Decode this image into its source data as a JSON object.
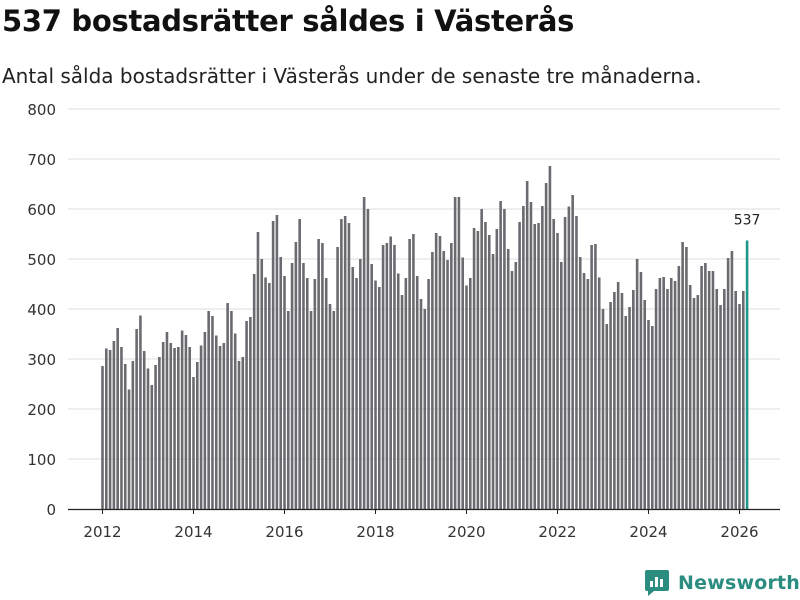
{
  "header": {
    "title": "537 bostadsrätter såldes i Västerås",
    "subtitle": "Antal sålda bostadsrätter i Västerås under de senaste tre månaderna."
  },
  "brand": {
    "name": "Newsworthy"
  },
  "colors": {
    "bar": "#6b6a71",
    "highlight": "#1e9688",
    "grid": "#dcdcdc",
    "brand": "#2b8c80"
  },
  "chart_data": {
    "type": "bar",
    "title": "537 bostadsrätter såldes i Västerås",
    "subtitle": "Antal sålda bostadsrätter i Västerås under de senaste tre månaderna.",
    "xlabel": "",
    "ylabel": "",
    "ylim": [
      0,
      800
    ],
    "yticks": [
      0,
      100,
      200,
      300,
      400,
      500,
      600,
      700,
      800
    ],
    "xticks": [
      2012,
      2014,
      2016,
      2018,
      2020,
      2022,
      2024,
      2026
    ],
    "start": {
      "year": 2012,
      "month": 1
    },
    "highlight_label": "537",
    "values": [
      286,
      321,
      318,
      336,
      362,
      324,
      290,
      239,
      296,
      360,
      387,
      316,
      281,
      248,
      288,
      304,
      334,
      354,
      332,
      322,
      324,
      357,
      348,
      324,
      264,
      294,
      327,
      354,
      396,
      386,
      347,
      326,
      332,
      412,
      396,
      351,
      296,
      304,
      376,
      384,
      470,
      554,
      500,
      463,
      452,
      576,
      588,
      504,
      466,
      396,
      492,
      534,
      580,
      492,
      462,
      396,
      460,
      540,
      532,
      462,
      410,
      396,
      524,
      580,
      586,
      572,
      484,
      462,
      500,
      624,
      600,
      490,
      457,
      444,
      528,
      532,
      545,
      528,
      471,
      428,
      462,
      540,
      550,
      466,
      420,
      400,
      460,
      514,
      552,
      546,
      516,
      498,
      532,
      624,
      624,
      503,
      447,
      462,
      562,
      556,
      600,
      574,
      548,
      510,
      560,
      616,
      600,
      520,
      476,
      494,
      574,
      606,
      656,
      614,
      570,
      572,
      606,
      652,
      686,
      580,
      552,
      494,
      584,
      605,
      628,
      586,
      504,
      472,
      460,
      528,
      530,
      463,
      400,
      370,
      414,
      434,
      454,
      432,
      386,
      404,
      438,
      500,
      474,
      418,
      378,
      366,
      440,
      462,
      464,
      440,
      462,
      456,
      486,
      534,
      524,
      448,
      422,
      428,
      486,
      492,
      476,
      476,
      440,
      408,
      440,
      502,
      516,
      436,
      410,
      436,
      537
    ]
  }
}
